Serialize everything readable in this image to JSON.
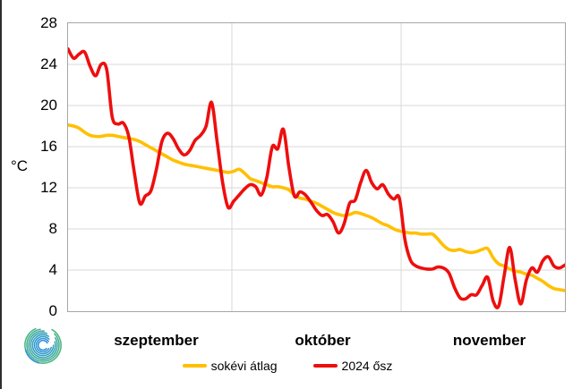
{
  "chart_data": {
    "type": "line",
    "title": "",
    "xlabel": "",
    "ylabel": "°C",
    "ylim": [
      0,
      28
    ],
    "yticks": [
      0,
      4,
      8,
      12,
      16,
      20,
      24,
      28
    ],
    "grid": true,
    "legend_position": "bottom",
    "x_unit": "daily values, 2024 autumn (Sep 1 – Nov 30, 91 days)",
    "months": [
      {
        "label": "szeptember",
        "days": 30
      },
      {
        "label": "október",
        "days": 31
      },
      {
        "label": "november",
        "days": 30
      }
    ],
    "series": [
      {
        "name": "sokévi átlag",
        "color": "#FFC000",
        "values": [
          18.1,
          18.0,
          17.8,
          17.4,
          17.1,
          17.0,
          17.0,
          17.1,
          17.1,
          17.0,
          16.9,
          16.8,
          16.7,
          16.5,
          16.2,
          15.9,
          15.6,
          15.3,
          15.0,
          14.7,
          14.5,
          14.3,
          14.2,
          14.1,
          14.0,
          13.9,
          13.8,
          13.7,
          13.6,
          13.5,
          13.6,
          13.8,
          13.4,
          12.9,
          12.7,
          12.5,
          12.3,
          12.1,
          12.1,
          12.0,
          11.8,
          11.3,
          11.0,
          10.9,
          10.7,
          10.5,
          10.2,
          9.9,
          9.6,
          9.4,
          9.3,
          9.4,
          9.6,
          9.5,
          9.3,
          9.1,
          8.8,
          8.5,
          8.3,
          8.0,
          7.8,
          7.7,
          7.6,
          7.6,
          7.5,
          7.5,
          7.5,
          7.0,
          6.4,
          6.0,
          5.9,
          6.0,
          5.8,
          5.7,
          5.8,
          6.0,
          6.1,
          5.2,
          4.6,
          4.4,
          4.1,
          3.9,
          3.8,
          3.6,
          3.5,
          3.2,
          2.9,
          2.5,
          2.2,
          2.1,
          2.0
        ]
      },
      {
        "name": "2024 ősz",
        "color": "#EE0E0E",
        "values": [
          25.5,
          24.6,
          25.0,
          25.2,
          23.8,
          22.9,
          24.0,
          23.5,
          18.9,
          18.2,
          18.3,
          17.0,
          13.5,
          10.5,
          11.2,
          11.7,
          13.8,
          16.5,
          17.3,
          16.8,
          15.8,
          15.2,
          15.6,
          16.6,
          17.1,
          18.0,
          20.3,
          16.5,
          12.5,
          10.1,
          10.7,
          11.3,
          11.9,
          12.3,
          12.1,
          11.3,
          13.0,
          16.0,
          15.8,
          17.7,
          14.0,
          11.2,
          11.6,
          11.3,
          10.6,
          9.8,
          9.3,
          9.4,
          8.7,
          7.6,
          8.5,
          10.5,
          10.8,
          12.5,
          13.7,
          12.5,
          11.9,
          12.3,
          11.4,
          10.9,
          11.0,
          7.0,
          5.0,
          4.4,
          4.2,
          4.1,
          4.1,
          4.3,
          4.2,
          3.7,
          2.3,
          1.3,
          1.2,
          1.6,
          1.6,
          2.5,
          3.3,
          1.0,
          0.5,
          3.5,
          6.2,
          3.0,
          0.7,
          3.0,
          4.2,
          3.8,
          4.9,
          5.3,
          4.4,
          4.2,
          4.5
        ]
      }
    ]
  },
  "logo": {
    "name": "hungaromet-spiral-logo"
  }
}
